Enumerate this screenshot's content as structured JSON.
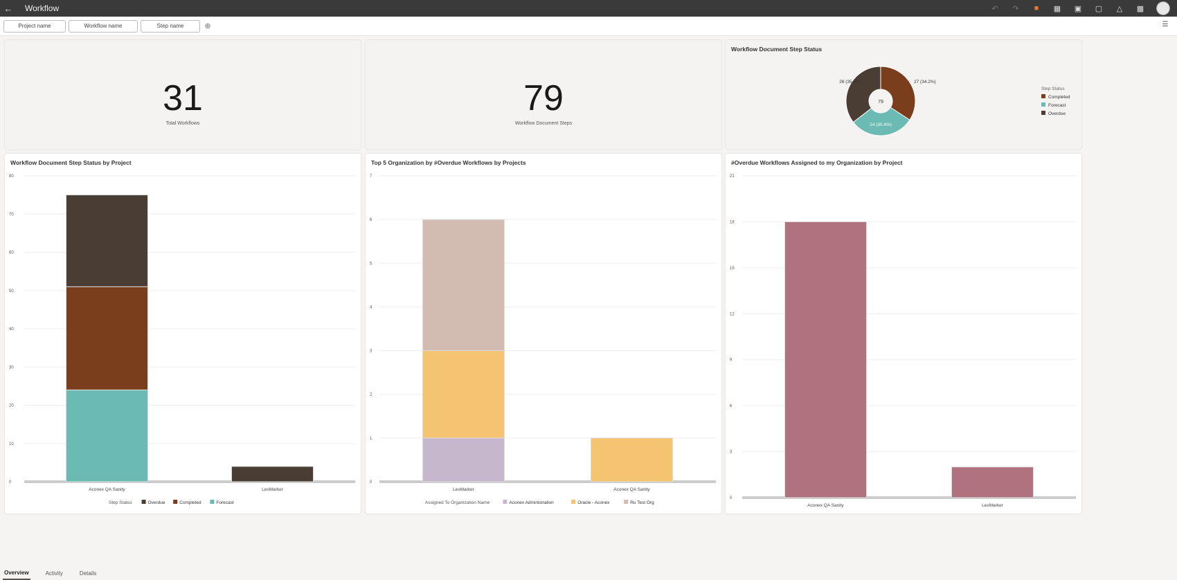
{
  "app": {
    "title": "Workflow"
  },
  "filters": {
    "project": "Project name",
    "workflow": "Workflow name",
    "step": "Step name"
  },
  "kpis": {
    "total_workflows": {
      "value": "31",
      "label": "Total Workflows"
    },
    "doc_steps": {
      "value": "79",
      "label": "Workflow Document Steps"
    }
  },
  "donut": {
    "title": "Workflow Document Step Status",
    "center": "79",
    "legend_title": "Step Status",
    "slices": [
      {
        "name": "Completed",
        "value": 27,
        "label": "27 (34.2%)",
        "color": "#7a3e1d"
      },
      {
        "name": "Forecast",
        "value": 24,
        "label": "24 (30.4%)",
        "color": "#6bbab3"
      },
      {
        "name": "Overdue",
        "value": 28,
        "label": "28 (35.4%)",
        "color": "#4a3d33"
      }
    ]
  },
  "tabs": [
    "Overview",
    "Activity",
    "Details"
  ],
  "chart_data": [
    {
      "type": "bar",
      "stacked": true,
      "title": "Workflow Document Step Status by Project",
      "categories": [
        "Aconex QA Sanity",
        "LexMarker"
      ],
      "series": [
        {
          "name": "Forecast",
          "values": [
            24,
            0
          ],
          "color": "#6bbab3"
        },
        {
          "name": "Completed",
          "values": [
            27,
            0
          ],
          "color": "#7a3e1d"
        },
        {
          "name": "Overdue",
          "values": [
            24,
            4
          ],
          "color": "#4a3d33"
        }
      ],
      "legend_order": [
        "Overdue",
        "Completed",
        "Forecast"
      ],
      "legend_title": "Step Status",
      "ylim": [
        0,
        80
      ],
      "yticks": [
        0,
        10,
        20,
        30,
        40,
        50,
        60,
        70,
        80
      ],
      "legend": "bottom"
    },
    {
      "type": "bar",
      "stacked": true,
      "title": "Top 5 Organization by #Overdue Workflows by Projects",
      "categories": [
        "LexMarker",
        "Aconex QA Sanity"
      ],
      "series": [
        {
          "name": "Aconex Administration",
          "values": [
            1,
            0
          ],
          "color": "#c6b7cc"
        },
        {
          "name": "Oracle - Aconex",
          "values": [
            2,
            1
          ],
          "color": "#f4c470"
        },
        {
          "name": "Ru Test Org",
          "values": [
            3,
            0
          ],
          "color": "#d2bcb1"
        }
      ],
      "legend_title": "Assigned To Organization Name",
      "ylim": [
        0,
        7
      ],
      "yticks": [
        0,
        1,
        2,
        3,
        4,
        5,
        6,
        7
      ],
      "legend": "bottom"
    },
    {
      "type": "bar",
      "title": "#Overdue Workflows Assigned to my Organization by Project",
      "categories": [
        "Aconex QA Sanity",
        "LexMarker"
      ],
      "series": [
        {
          "name": "#Overdue Workflows",
          "values": [
            18,
            2
          ],
          "color": "#b0727f"
        }
      ],
      "ylim": [
        0,
        21
      ],
      "yticks": [
        0,
        3,
        6,
        9,
        12,
        15,
        18,
        21
      ]
    }
  ]
}
